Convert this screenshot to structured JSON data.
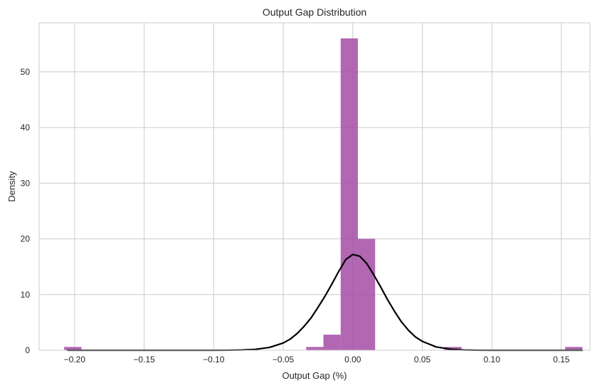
{
  "chart_data": {
    "type": "bar",
    "title": "Output Gap Distribution",
    "xlabel": "Output Gap (%)",
    "ylabel": "Density",
    "xlim": [
      -0.2255,
      0.1705
    ],
    "ylim": [
      0,
      58.8
    ],
    "x_ticks": [
      -0.2,
      -0.15,
      -0.1,
      -0.05,
      0.0,
      0.05,
      0.1,
      0.15
    ],
    "x_tick_labels": [
      "−0.20",
      "−0.15",
      "−0.10",
      "−0.05",
      "0.00",
      "0.05",
      "0.10",
      "0.15"
    ],
    "y_ticks": [
      0,
      10,
      20,
      30,
      40,
      50
    ],
    "y_tick_labels": [
      "0",
      "10",
      "20",
      "30",
      "40",
      "50"
    ],
    "grid": true,
    "bar_color": "#a44ca6",
    "bar_opacity": 0.85,
    "curve_color": "#000000",
    "bins": [
      {
        "x0": -0.2075,
        "x1": -0.1951,
        "value": 0.6
      },
      {
        "x0": -0.0335,
        "x1": -0.0211,
        "value": 0.6
      },
      {
        "x0": -0.0211,
        "x1": -0.0087,
        "value": 2.8
      },
      {
        "x0": -0.0087,
        "x1": 0.0037,
        "value": 56
      },
      {
        "x0": 0.0037,
        "x1": 0.0161,
        "value": 20
      },
      {
        "x0": 0.0658,
        "x1": 0.0782,
        "value": 0.6
      },
      {
        "x0": 0.1527,
        "x1": 0.1651,
        "value": 0.6
      }
    ],
    "series": [
      {
        "type": "line",
        "x": [
          -0.205,
          -0.18,
          -0.16,
          -0.14,
          -0.12,
          -0.1,
          -0.09,
          -0.08,
          -0.07,
          -0.06,
          -0.05,
          -0.045,
          -0.04,
          -0.035,
          -0.03,
          -0.025,
          -0.02,
          -0.015,
          -0.01,
          -0.005,
          0.0,
          0.005,
          0.01,
          0.015,
          0.02,
          0.025,
          0.03,
          0.035,
          0.04,
          0.045,
          0.05,
          0.06,
          0.07,
          0.08,
          0.09,
          0.1,
          0.12,
          0.14,
          0.165
        ],
        "y": [
          0.0,
          0.0,
          0.0,
          0.0,
          0.0,
          0.0,
          0.01,
          0.05,
          0.17,
          0.5,
          1.3,
          2.0,
          3.0,
          4.3,
          5.8,
          7.7,
          9.7,
          11.9,
          14.2,
          16.3,
          17.2,
          16.9,
          15.6,
          13.6,
          11.4,
          9.1,
          7.0,
          5.1,
          3.6,
          2.4,
          1.6,
          0.6,
          0.2,
          0.05,
          0.01,
          0.0,
          0.0,
          0.0,
          0.0
        ]
      }
    ]
  }
}
